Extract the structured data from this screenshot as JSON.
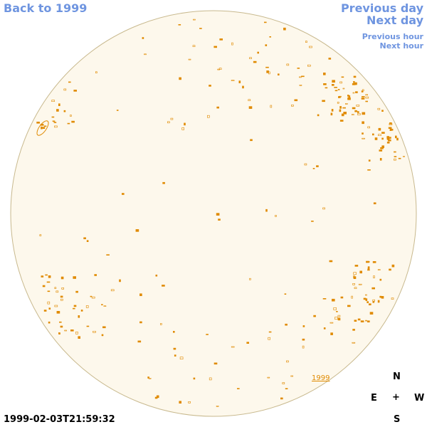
{
  "nav": {
    "back": "Back to 1999",
    "previous_day": "Previous day",
    "next_day": "Next day",
    "previous_hour": "Previous hour",
    "next_hour": "Next hour"
  },
  "timestamp": "1999-02-03T21:59:32",
  "year_label": "1999",
  "compass": {
    "north": "N",
    "south": "S",
    "east": "E",
    "west": "W",
    "center": "+"
  },
  "colors": {
    "link": "#6f95e0",
    "disk_fill": "#fdf8ec",
    "disk_edge": "#c8b98e",
    "feature": "#e08a00"
  }
}
